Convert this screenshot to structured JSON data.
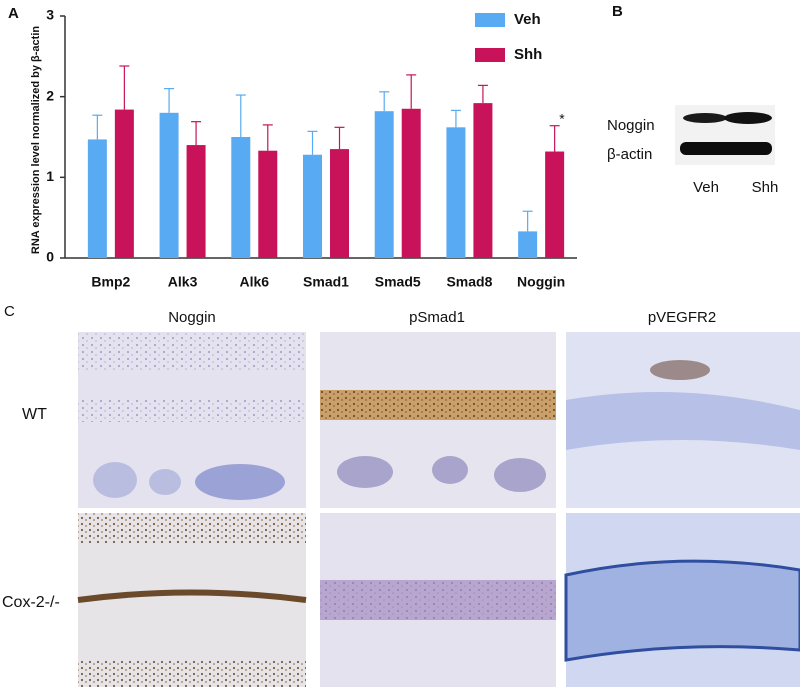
{
  "chart_data": {
    "type": "bar",
    "panel": "A",
    "y_label": "RNA expression level normalized by β-actin",
    "categories": [
      "Bmp2",
      "Alk3",
      "Alk6",
      "Smad1",
      "Smad5",
      "Smad8",
      "Noggin"
    ],
    "series": [
      {
        "name": "Veh",
        "color": "#58aaf2",
        "values": [
          1.47,
          1.8,
          1.5,
          1.28,
          1.82,
          1.62,
          0.33
        ],
        "errors": [
          0.3,
          0.3,
          0.52,
          0.29,
          0.24,
          0.21,
          0.25
        ]
      },
      {
        "name": "Shh",
        "color": "#c8125a",
        "values": [
          1.84,
          1.4,
          1.33,
          1.35,
          1.85,
          1.92,
          1.32
        ],
        "errors": [
          0.54,
          0.29,
          0.32,
          0.27,
          0.42,
          0.22,
          0.32
        ]
      }
    ],
    "annotation": "*",
    "ylim": [
      0,
      3
    ],
    "yticks": [
      0,
      1,
      2,
      3
    ],
    "legend": "top-right"
  },
  "blot": {
    "panel": "B",
    "rows": [
      "Noggin",
      "β-actin"
    ],
    "columns": [
      "Veh",
      "Shh"
    ]
  },
  "histology": {
    "panel": "C",
    "columns": [
      "Noggin",
      "pSmad1",
      "pVEGFR2"
    ],
    "rows": [
      "WT",
      "Cox-2-/-"
    ]
  }
}
